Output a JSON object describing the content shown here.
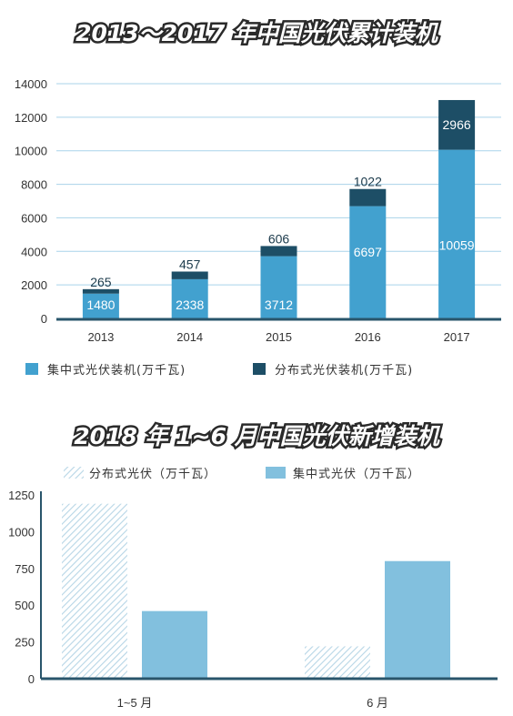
{
  "colors": {
    "centralized": "#42a1cf",
    "distributed": "#1d4e66",
    "grid": "#a9d3ea",
    "axis": "#29556b",
    "centralized_light": "#82c0de",
    "hatch": "#b7d6e6"
  },
  "chart_data": [
    {
      "type": "bar",
      "stacked": true,
      "title": "2013～2017 年中国光伏累计装机",
      "categories": [
        "2013",
        "2014",
        "2015",
        "2016",
        "2017"
      ],
      "series": [
        {
          "name": "集中式光伏装机(万千瓦)",
          "values": [
            1480,
            2338,
            3712,
            6697,
            10059
          ]
        },
        {
          "name": "分布式光伏装机(万千瓦)",
          "values": [
            265,
            457,
            606,
            1022,
            2966
          ]
        }
      ],
      "ylim": [
        0,
        14000
      ],
      "yticks": [
        "0",
        "2000",
        "4000",
        "6000",
        "8000",
        "10000",
        "12000",
        "14000"
      ],
      "grid": true,
      "legend": "bottom"
    },
    {
      "type": "bar",
      "stacked": false,
      "title": "2018 年 1~6 月中国光伏新增装机",
      "categories": [
        "1~5 月",
        "6 月"
      ],
      "series": [
        {
          "name": "分布式光伏（万千瓦）",
          "values": [
            1190,
            220
          ]
        },
        {
          "name": "集中式光伏（万千瓦）",
          "values": [
            460,
            800
          ]
        }
      ],
      "ylim": [
        0,
        1250
      ],
      "yticks": [
        "0",
        "250",
        "500",
        "750",
        "1000",
        "1250"
      ],
      "grid": false,
      "legend": "top"
    }
  ]
}
